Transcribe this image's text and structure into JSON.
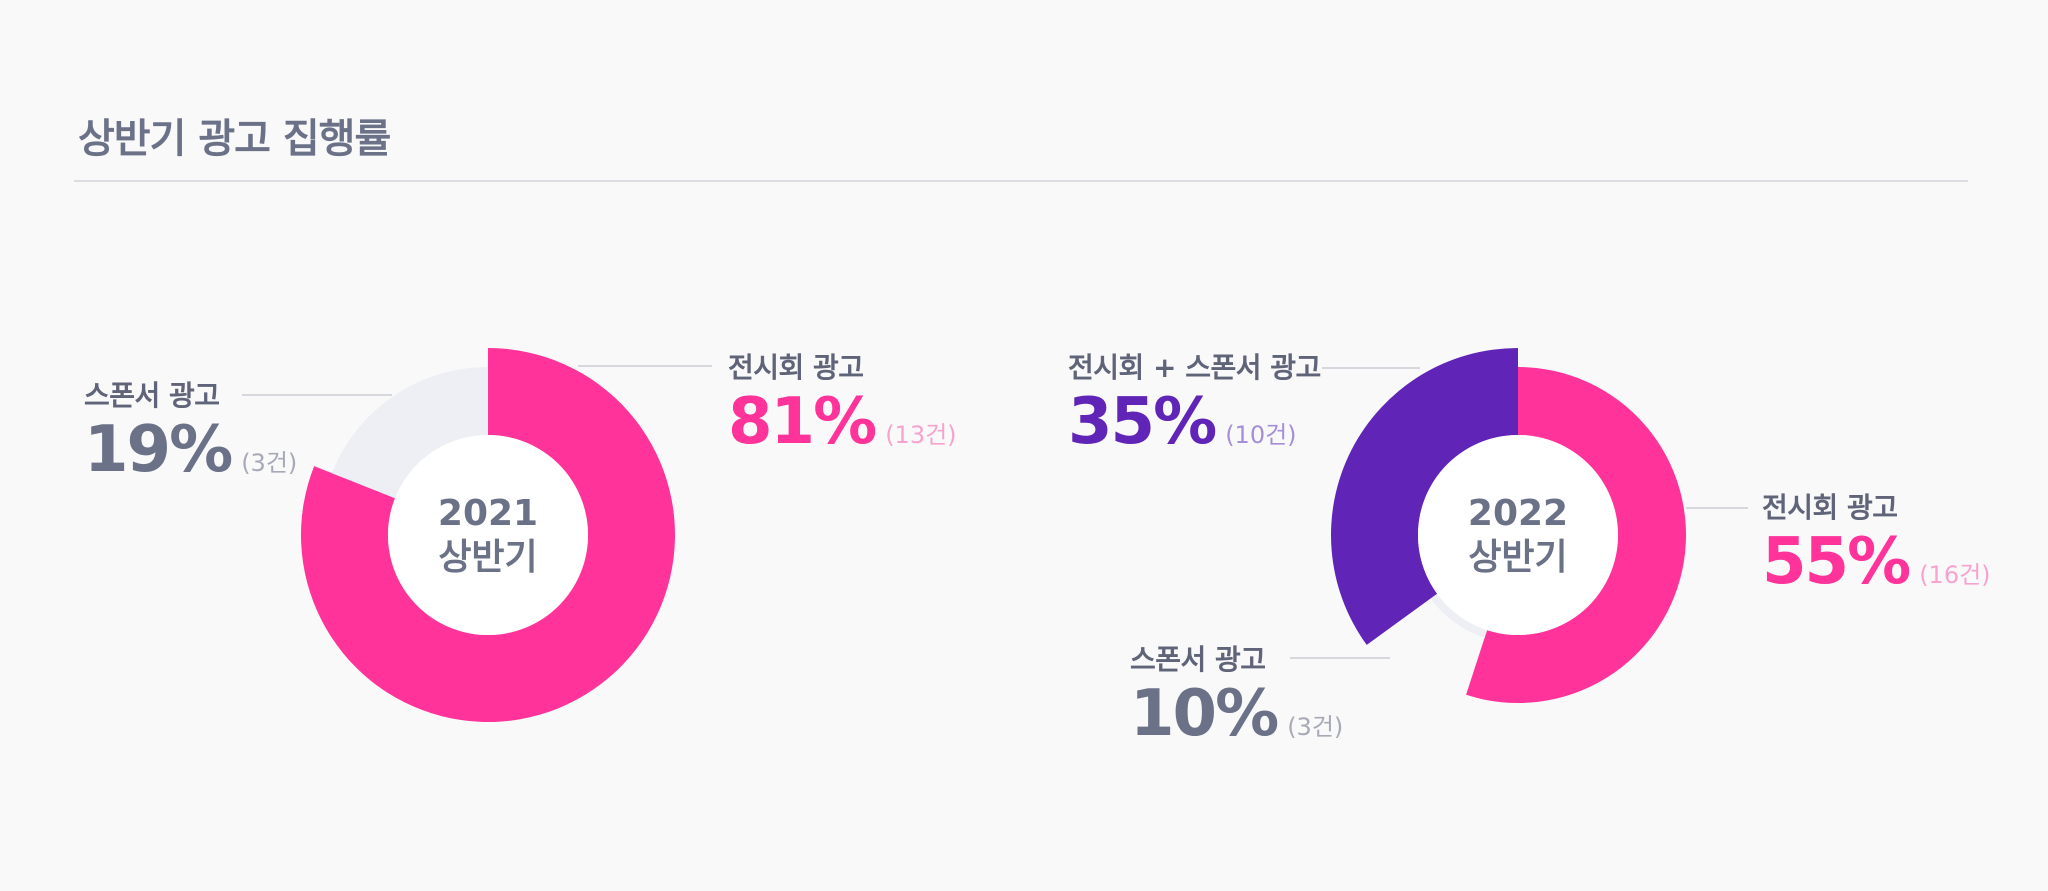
{
  "title": "상반기 광고 집행률",
  "colors": {
    "pink": "#ff3399",
    "pink_light": "#f7a3cf",
    "purple": "#6024b7",
    "purple_light": "#a68fd8",
    "gray": "#6b7288",
    "gray_light": "#a7aab6",
    "track": "#eeeff4"
  },
  "chart_data": [
    {
      "type": "pie",
      "center_label": [
        "2021",
        "상반기"
      ],
      "slices": [
        {
          "label": "전시회 광고",
          "value": 81,
          "display": "81%",
          "count": "(13건)",
          "color": "#ff3399"
        },
        {
          "label": "스폰서 광고",
          "value": 19,
          "display": "19%",
          "count": "(3건)",
          "color": "#eeeff4"
        }
      ]
    },
    {
      "type": "pie",
      "center_label": [
        "2022",
        "상반기"
      ],
      "slices": [
        {
          "label": "전시회 광고",
          "value": 55,
          "display": "55%",
          "count": "(16건)",
          "color": "#ff3399"
        },
        {
          "label": "스폰서 광고",
          "value": 10,
          "display": "10%",
          "count": "(3건)",
          "color": "#eeeff4"
        },
        {
          "label": "전시회 + 스폰서 광고",
          "value": 35,
          "display": "35%",
          "count": "(10건)",
          "color": "#6024b7"
        }
      ]
    }
  ]
}
